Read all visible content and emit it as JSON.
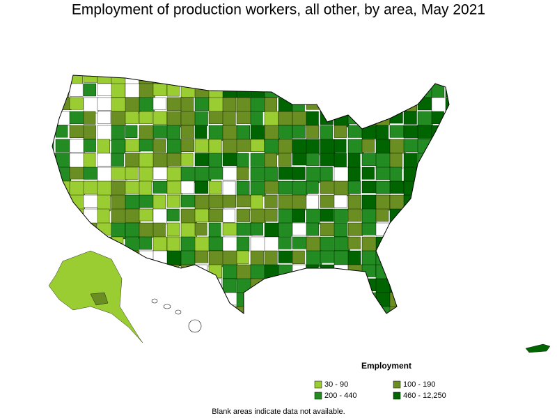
{
  "title": "Employment of production workers, all other, by area, May 2021",
  "legend": {
    "title": "Employment",
    "items": [
      {
        "label": "30 - 90",
        "color": "#9acd32"
      },
      {
        "label": "100 - 190",
        "color": "#6b8e23"
      },
      {
        "label": "200 - 440",
        "color": "#228b22"
      },
      {
        "label": "460 - 12,250",
        "color": "#006400"
      }
    ]
  },
  "footnote": "Blank areas indicate data not available."
}
